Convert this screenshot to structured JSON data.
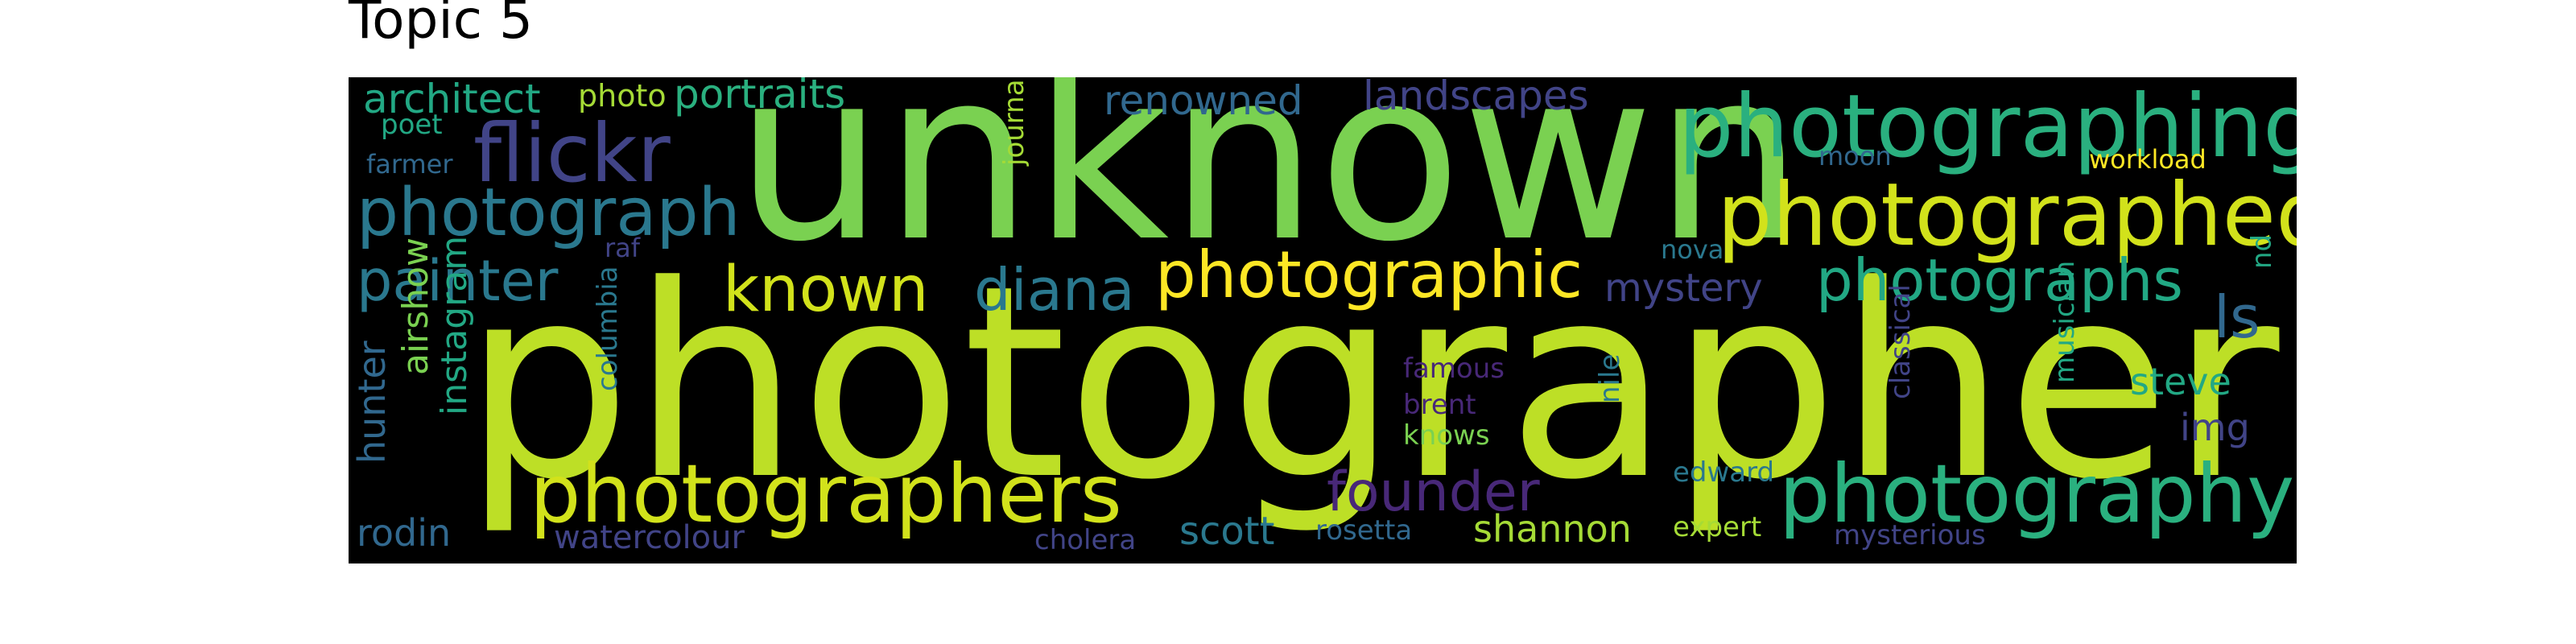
{
  "title": "Topic 5",
  "background": "#000000",
  "palette": {
    "lime": "#bddf26",
    "green": "#7ad151",
    "teal_green": "#2ab07f",
    "teal": "#22a884",
    "blue": "#2a788e",
    "steel": "#31688e",
    "indigo": "#414487",
    "purple": "#482878",
    "dark_purple": "#440154",
    "yellow": "#fde725",
    "gold": "#d2e21b",
    "light_green": "#a5db36"
  },
  "words": [
    {
      "text": "photographer",
      "color": "#bddf26"
    },
    {
      "text": "unknown",
      "color": "#7ad151"
    },
    {
      "text": "photographing",
      "color": "#2ab07f"
    },
    {
      "text": "photographed",
      "color": "#d2e21b"
    },
    {
      "text": "photographers",
      "color": "#d2e21b"
    },
    {
      "text": "photography",
      "color": "#2ab07f"
    },
    {
      "text": "flickr",
      "color": "#414487"
    },
    {
      "text": "photograph",
      "color": "#2a788e"
    },
    {
      "text": "photographic",
      "color": "#fde725"
    },
    {
      "text": "photographs",
      "color": "#22a884"
    },
    {
      "text": "known",
      "color": "#d2e21b"
    },
    {
      "text": "diana",
      "color": "#2a788e"
    },
    {
      "text": "painter",
      "color": "#2a788e"
    },
    {
      "text": "founder",
      "color": "#482878"
    },
    {
      "text": "architect",
      "color": "#22a884"
    },
    {
      "text": "portraits",
      "color": "#2ab07f"
    },
    {
      "text": "photo",
      "color": "#a5db36"
    },
    {
      "text": "renowned",
      "color": "#31688e"
    },
    {
      "text": "landscapes",
      "color": "#414487"
    },
    {
      "text": "journalist",
      "color": "#a5db36"
    },
    {
      "text": "poet",
      "color": "#22a884"
    },
    {
      "text": "farmer",
      "color": "#31688e"
    },
    {
      "text": "moon",
      "color": "#31688e"
    },
    {
      "text": "workload",
      "color": "#fde725"
    },
    {
      "text": "raf",
      "color": "#414487"
    },
    {
      "text": "nova",
      "color": "#2a788e"
    },
    {
      "text": "mystery",
      "color": "#414487"
    },
    {
      "text": "ls",
      "color": "#31688e"
    },
    {
      "text": "nd",
      "color": "#22a884"
    },
    {
      "text": "airshow",
      "color": "#7ad151"
    },
    {
      "text": "instagram",
      "color": "#22a884"
    },
    {
      "text": "hunter",
      "color": "#31688e"
    },
    {
      "text": "columbia",
      "color": "#2a788e"
    },
    {
      "text": "famous",
      "color": "#482878"
    },
    {
      "text": "brent",
      "color": "#482878"
    },
    {
      "text": "knows",
      "color": "#7ad151"
    },
    {
      "text": "nile",
      "color": "#2a788e"
    },
    {
      "text": "classical",
      "color": "#414487"
    },
    {
      "text": "musician",
      "color": "#22a884"
    },
    {
      "text": "steve",
      "color": "#22a884"
    },
    {
      "text": "img",
      "color": "#414487"
    },
    {
      "text": "edward",
      "color": "#2a788e"
    },
    {
      "text": "expert",
      "color": "#a5db36"
    },
    {
      "text": "rodin",
      "color": "#31688e"
    },
    {
      "text": "watercolour",
      "color": "#414487"
    },
    {
      "text": "cholera",
      "color": "#414487"
    },
    {
      "text": "scott",
      "color": "#2a788e"
    },
    {
      "text": "rosetta",
      "color": "#31688e"
    },
    {
      "text": "shannon",
      "color": "#a5db36"
    },
    {
      "text": "mysterious",
      "color": "#414487"
    }
  ]
}
